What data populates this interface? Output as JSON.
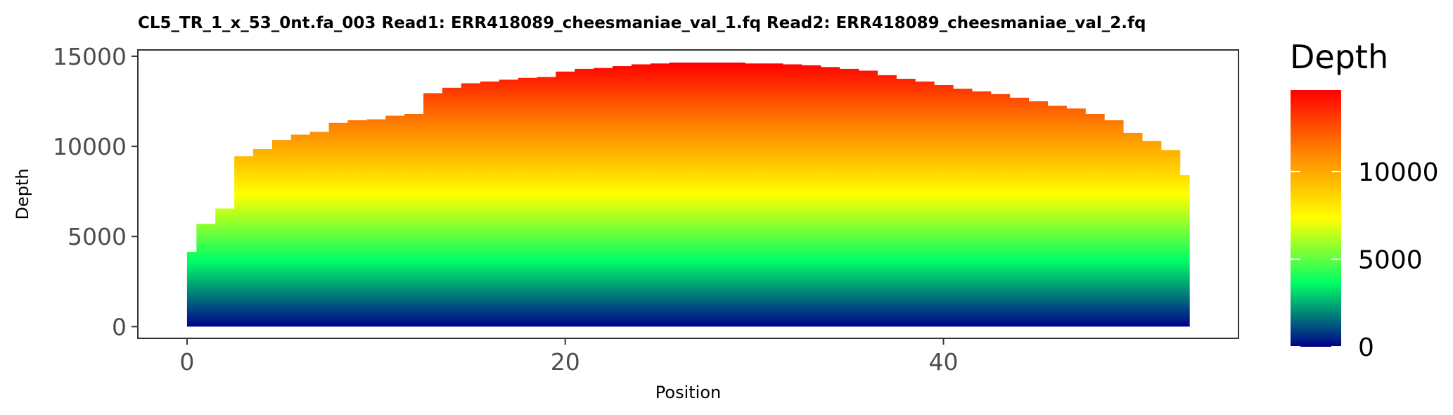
{
  "chart_data": {
    "type": "area",
    "subtype": "step",
    "title": "CL5_TR_1_x_53_0nt.fa_003   Read1: ERR418089_cheesmaniae_val_1.fq   Read2: ERR418089_cheesmaniae_val_2.fq",
    "xlabel": "Position",
    "ylabel": "Depth",
    "xlim": [
      -2.6,
      55.6
    ],
    "ylim": [
      -650,
      15350
    ],
    "x_ticks": [
      0,
      20,
      40
    ],
    "y_ticks": [
      0,
      5000,
      10000,
      15000
    ],
    "x": [
      0,
      1,
      2,
      3,
      4,
      5,
      6,
      7,
      8,
      9,
      10,
      11,
      12,
      13,
      14,
      15,
      16,
      17,
      18,
      19,
      20,
      21,
      22,
      23,
      24,
      25,
      26,
      27,
      28,
      29,
      30,
      31,
      32,
      33,
      34,
      35,
      36,
      37,
      38,
      39,
      40,
      41,
      42,
      43,
      44,
      45,
      46,
      47,
      48,
      49,
      50,
      51,
      52,
      53
    ],
    "values": [
      4150,
      5700,
      6550,
      9450,
      9850,
      10350,
      10650,
      10800,
      11300,
      11450,
      11500,
      11700,
      11800,
      12950,
      13250,
      13500,
      13600,
      13700,
      13800,
      13850,
      14150,
      14300,
      14350,
      14450,
      14550,
      14600,
      14650,
      14650,
      14650,
      14650,
      14600,
      14600,
      14550,
      14500,
      14400,
      14300,
      14200,
      13950,
      13750,
      13600,
      13400,
      13200,
      13050,
      12900,
      12700,
      12500,
      12250,
      12100,
      11800,
      11450,
      10750,
      10300,
      9800,
      8400
    ],
    "grid": false,
    "fill_colormap": [
      "#00008b",
      "#00ff66",
      "#ffff00",
      "#ff8800",
      "#ff0000"
    ],
    "legend": {
      "title": "Depth",
      "placement": "right",
      "labels": [
        "0",
        "5000",
        "10000"
      ],
      "values": [
        0,
        5000,
        10000
      ],
      "range": [
        0,
        14650
      ]
    }
  }
}
